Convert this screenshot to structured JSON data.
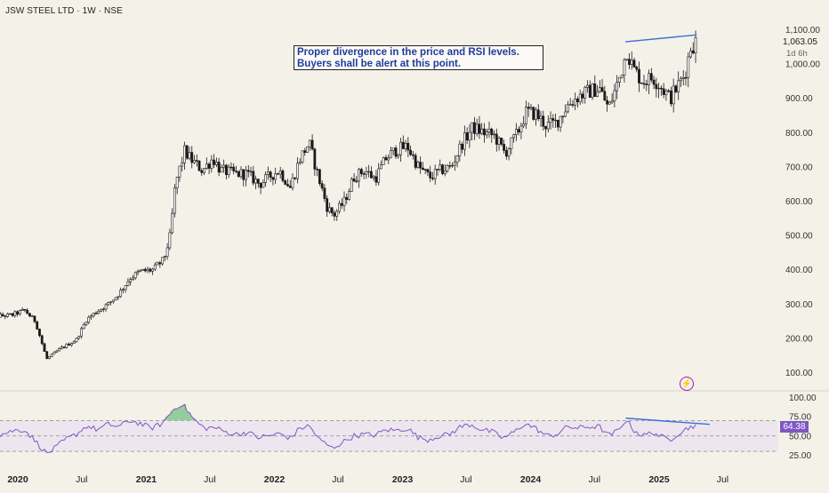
{
  "chart_data": {
    "type": "candlestick",
    "title": "JSW STEEL LTD · 1W · NSE",
    "annotation_lines": [
      "Proper divergence in the price and RSI levels.",
      "Buyers shall be alert at this point."
    ],
    "last_price": "1,063.05",
    "countdown": "1d 6h",
    "price_axis": {
      "ticks": [
        100,
        200,
        300,
        400,
        500,
        600,
        700,
        800,
        900,
        1000,
        1100
      ],
      "tick_labels": [
        "100.00",
        "200.00",
        "300.00",
        "400.00",
        "500.00",
        "600.00",
        "700.00",
        "800.00",
        "900.00",
        "1,000.00",
        "1,100.00"
      ],
      "ylim": [
        80,
        1120
      ]
    },
    "x_axis": {
      "labels": [
        "2020",
        "Jul",
        "2021",
        "Jul",
        "2022",
        "Jul",
        "2023",
        "Jul",
        "2024",
        "Jul",
        "2025",
        "Jul"
      ],
      "bold": [
        true,
        false,
        true,
        false,
        true,
        false,
        true,
        false,
        true,
        false,
        true,
        false
      ],
      "dates": [
        "2020-01-01",
        "2020-07-01",
        "2021-01-01",
        "2021-07-01",
        "2022-01-01",
        "2022-07-01",
        "2023-01-01",
        "2023-07-01",
        "2024-01-01",
        "2024-07-01",
        "2025-01-01",
        "2025-07-01"
      ]
    },
    "price_path": [
      [
        "2019-10-01",
        262
      ],
      [
        "2019-12-15",
        268
      ],
      [
        "2020-01-20",
        282
      ],
      [
        "2020-02-20",
        250
      ],
      [
        "2020-03-23",
        140
      ],
      [
        "2020-05-01",
        170
      ],
      [
        "2020-06-15",
        195
      ],
      [
        "2020-07-15",
        255
      ],
      [
        "2020-08-15",
        280
      ],
      [
        "2020-09-15",
        300
      ],
      [
        "2020-10-15",
        330
      ],
      [
        "2020-11-15",
        375
      ],
      [
        "2020-12-15",
        395
      ],
      [
        "2021-01-20",
        400
      ],
      [
        "2021-02-20",
        430
      ],
      [
        "2021-03-10",
        500
      ],
      [
        "2021-03-25",
        650
      ],
      [
        "2021-04-20",
        745
      ],
      [
        "2021-05-10",
        720
      ],
      [
        "2021-06-10",
        690
      ],
      [
        "2021-07-10",
        725
      ],
      [
        "2021-08-01",
        690
      ],
      [
        "2021-09-15",
        680
      ],
      [
        "2021-10-15",
        680
      ],
      [
        "2021-11-20",
        650
      ],
      [
        "2021-12-15",
        670
      ],
      [
        "2022-01-15",
        690
      ],
      [
        "2022-02-15",
        640
      ],
      [
        "2022-03-15",
        725
      ],
      [
        "2022-04-10",
        770
      ],
      [
        "2022-05-01",
        690
      ],
      [
        "2022-06-01",
        580
      ],
      [
        "2022-06-20",
        560
      ],
      [
        "2022-07-20",
        600
      ],
      [
        "2022-08-15",
        670
      ],
      [
        "2022-09-15",
        690
      ],
      [
        "2022-10-15",
        665
      ],
      [
        "2022-11-15",
        725
      ],
      [
        "2022-12-15",
        750
      ],
      [
        "2023-01-15",
        760
      ],
      [
        "2023-02-15",
        700
      ],
      [
        "2023-03-20",
        670
      ],
      [
        "2023-04-20",
        690
      ],
      [
        "2023-05-20",
        700
      ],
      [
        "2023-06-20",
        770
      ],
      [
        "2023-07-20",
        815
      ],
      [
        "2023-08-20",
        800
      ],
      [
        "2023-09-20",
        790
      ],
      [
        "2023-10-20",
        740
      ],
      [
        "2023-11-20",
        790
      ],
      [
        "2023-12-20",
        860
      ],
      [
        "2024-01-15",
        855
      ],
      [
        "2024-02-15",
        820
      ],
      [
        "2024-03-15",
        830
      ],
      [
        "2024-04-15",
        880
      ],
      [
        "2024-05-15",
        905
      ],
      [
        "2024-06-15",
        920
      ],
      [
        "2024-07-15",
        930
      ],
      [
        "2024-08-10",
        870
      ],
      [
        "2024-09-10",
        960
      ],
      [
        "2024-10-01",
        1040
      ],
      [
        "2024-10-20",
        985
      ],
      [
        "2024-11-15",
        950
      ],
      [
        "2024-12-15",
        960
      ],
      [
        "2025-01-10",
        930
      ],
      [
        "2025-02-01",
        900
      ],
      [
        "2025-02-20",
        930
      ],
      [
        "2025-03-15",
        970
      ],
      [
        "2025-04-01",
        1050
      ],
      [
        "2025-04-15",
        1063
      ]
    ],
    "price_trendline": [
      [
        "2024-09-27",
        1065
      ],
      [
        "2025-04-18",
        1085
      ]
    ],
    "rsi": {
      "label_ticks": [
        25,
        50,
        75,
        100
      ],
      "tick_labels": [
        "25.00",
        "50.00",
        "75.00",
        "100.00"
      ],
      "bands": [
        30,
        50,
        70
      ],
      "ylim": [
        18,
        104
      ],
      "current": "64.38",
      "path": [
        [
          "2019-10-01",
          48
        ],
        [
          "2019-11-15",
          52
        ],
        [
          "2019-12-20",
          57
        ],
        [
          "2020-01-20",
          58
        ],
        [
          "2020-02-15",
          46
        ],
        [
          "2020-03-23",
          27
        ],
        [
          "2020-04-10",
          32
        ],
        [
          "2020-05-15",
          45
        ],
        [
          "2020-06-15",
          52
        ],
        [
          "2020-07-15",
          63
        ],
        [
          "2020-08-15",
          58
        ],
        [
          "2020-09-15",
          65
        ],
        [
          "2020-10-15",
          62
        ],
        [
          "2020-11-15",
          70
        ],
        [
          "2020-12-15",
          66
        ],
        [
          "2021-01-15",
          60
        ],
        [
          "2021-02-15",
          66
        ],
        [
          "2021-03-15",
          82
        ],
        [
          "2021-04-10",
          92
        ],
        [
          "2021-04-25",
          85
        ],
        [
          "2021-05-15",
          72
        ],
        [
          "2021-06-15",
          60
        ],
        [
          "2021-07-15",
          61
        ],
        [
          "2021-08-15",
          55
        ],
        [
          "2021-09-15",
          52
        ],
        [
          "2021-10-15",
          55
        ],
        [
          "2021-11-15",
          48
        ],
        [
          "2021-12-15",
          50
        ],
        [
          "2022-01-15",
          53
        ],
        [
          "2022-02-15",
          47
        ],
        [
          "2022-03-15",
          60
        ],
        [
          "2022-04-10",
          63
        ],
        [
          "2022-05-10",
          45
        ],
        [
          "2022-06-15",
          34
        ],
        [
          "2022-07-15",
          42
        ],
        [
          "2022-08-15",
          50
        ],
        [
          "2022-09-15",
          52
        ],
        [
          "2022-10-15",
          51
        ],
        [
          "2022-11-15",
          58
        ],
        [
          "2022-12-15",
          57
        ],
        [
          "2023-01-15",
          60
        ],
        [
          "2023-02-15",
          48
        ],
        [
          "2023-03-15",
          45
        ],
        [
          "2023-04-15",
          50
        ],
        [
          "2023-05-15",
          52
        ],
        [
          "2023-06-15",
          62
        ],
        [
          "2023-07-15",
          65
        ],
        [
          "2023-08-15",
          58
        ],
        [
          "2023-09-15",
          55
        ],
        [
          "2023-10-15",
          47
        ],
        [
          "2023-11-15",
          55
        ],
        [
          "2023-12-15",
          66
        ],
        [
          "2024-01-15",
          60
        ],
        [
          "2024-02-15",
          50
        ],
        [
          "2024-03-15",
          52
        ],
        [
          "2024-04-15",
          62
        ],
        [
          "2024-05-15",
          60
        ],
        [
          "2024-06-15",
          62
        ],
        [
          "2024-07-15",
          62
        ],
        [
          "2024-08-10",
          50
        ],
        [
          "2024-09-10",
          58
        ],
        [
          "2024-09-28",
          72
        ],
        [
          "2024-10-20",
          58
        ],
        [
          "2024-11-15",
          50
        ],
        [
          "2024-12-15",
          55
        ],
        [
          "2025-01-10",
          48
        ],
        [
          "2025-02-01",
          45
        ],
        [
          "2025-02-20",
          52
        ],
        [
          "2025-03-15",
          58
        ],
        [
          "2025-04-01",
          62
        ],
        [
          "2025-04-15",
          64
        ]
      ],
      "trendline": [
        [
          "2024-09-28",
          73
        ],
        [
          "2025-05-25",
          65
        ]
      ]
    }
  },
  "icons": {
    "flash": "flash-icon"
  },
  "colors": {
    "background": "#f4f1e9",
    "candle": "#1a1a1a",
    "rsi_line": "#7e57c2",
    "trendline": "#3b6fd8",
    "annotation_text": "#1f3c9e",
    "rsi_band": "#ede6ee",
    "rsi_overbought_fill": "#7ec48a"
  }
}
